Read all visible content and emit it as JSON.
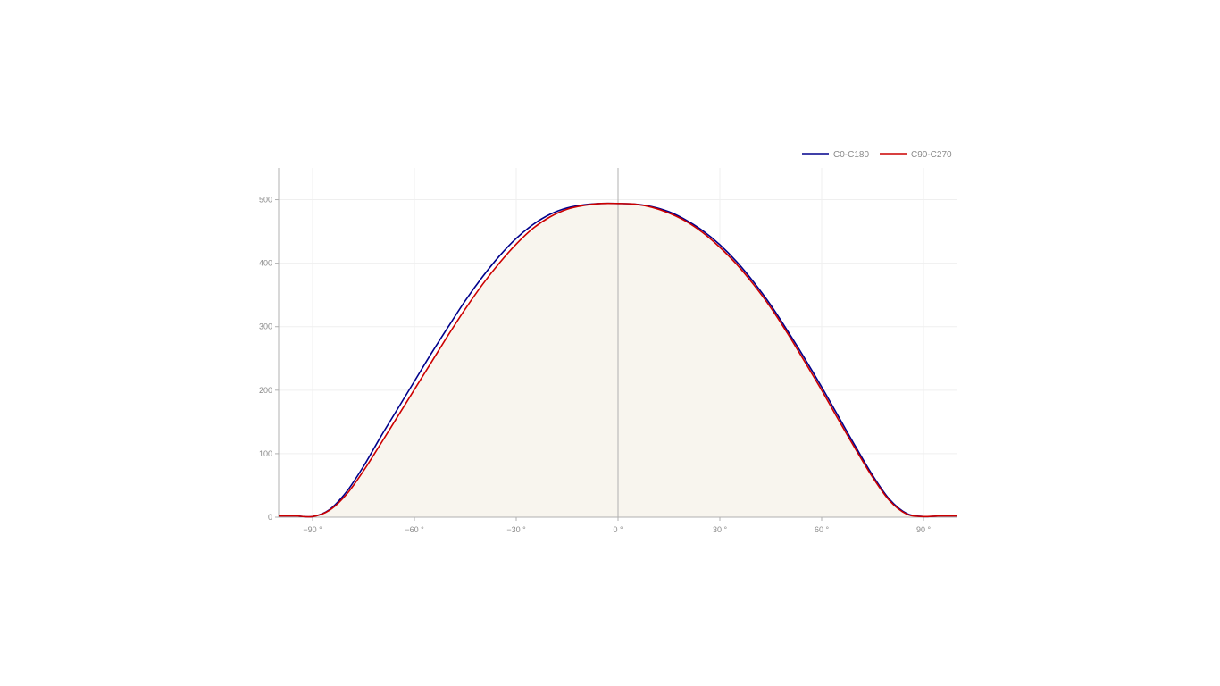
{
  "chart_data": {
    "type": "line",
    "xlim": [
      -100,
      100
    ],
    "ylim": [
      0,
      550
    ],
    "x_ticks": [
      -90,
      -60,
      -30,
      0,
      30,
      60,
      90
    ],
    "x_tick_labels": [
      "−90 °",
      "−60 °",
      "−30 °",
      "0 °",
      "30 °",
      "60 °",
      "90 °"
    ],
    "y_ticks": [
      0,
      100,
      200,
      300,
      400,
      500
    ],
    "y_tick_labels": [
      "0",
      "100",
      "200",
      "300",
      "400",
      "500"
    ],
    "grid": true,
    "legend_position": "top-right",
    "fill_color": "#f8f5ee",
    "series": [
      {
        "name": "C0-C180",
        "color": "#00008b",
        "x": [
          -100,
          -95,
          -90,
          -85,
          -80,
          -75,
          -70,
          -65,
          -60,
          -55,
          -50,
          -45,
          -40,
          -35,
          -30,
          -25,
          -20,
          -15,
          -10,
          -5,
          0,
          5,
          10,
          15,
          20,
          25,
          30,
          35,
          40,
          45,
          50,
          55,
          60,
          65,
          70,
          75,
          80,
          85,
          90,
          95,
          100
        ],
        "y": [
          2,
          2,
          1,
          12,
          40,
          80,
          126,
          170,
          214,
          258,
          300,
          341,
          378,
          411,
          439,
          461,
          477,
          487,
          492,
          494,
          494,
          493,
          489,
          481,
          468,
          451,
          429,
          402,
          370,
          334,
          293,
          250,
          205,
          158,
          111,
          66,
          28,
          6,
          1,
          2,
          2
        ]
      },
      {
        "name": "C90-C270",
        "color": "#cc0000",
        "x": [
          -100,
          -95,
          -90,
          -85,
          -80,
          -75,
          -70,
          -65,
          -60,
          -55,
          -50,
          -45,
          -40,
          -35,
          -30,
          -25,
          -20,
          -15,
          -10,
          -5,
          0,
          5,
          10,
          15,
          20,
          25,
          30,
          35,
          40,
          45,
          50,
          55,
          60,
          65,
          70,
          75,
          80,
          85,
          90,
          95,
          100
        ],
        "y": [
          2,
          2,
          1,
          11,
          36,
          73,
          115,
          158,
          201,
          244,
          287,
          328,
          366,
          400,
          430,
          455,
          473,
          485,
          491,
          494,
          494,
          493,
          488,
          479,
          466,
          448,
          425,
          398,
          366,
          330,
          289,
          245,
          200,
          153,
          107,
          63,
          26,
          5,
          1,
          2,
          2
        ]
      }
    ]
  }
}
